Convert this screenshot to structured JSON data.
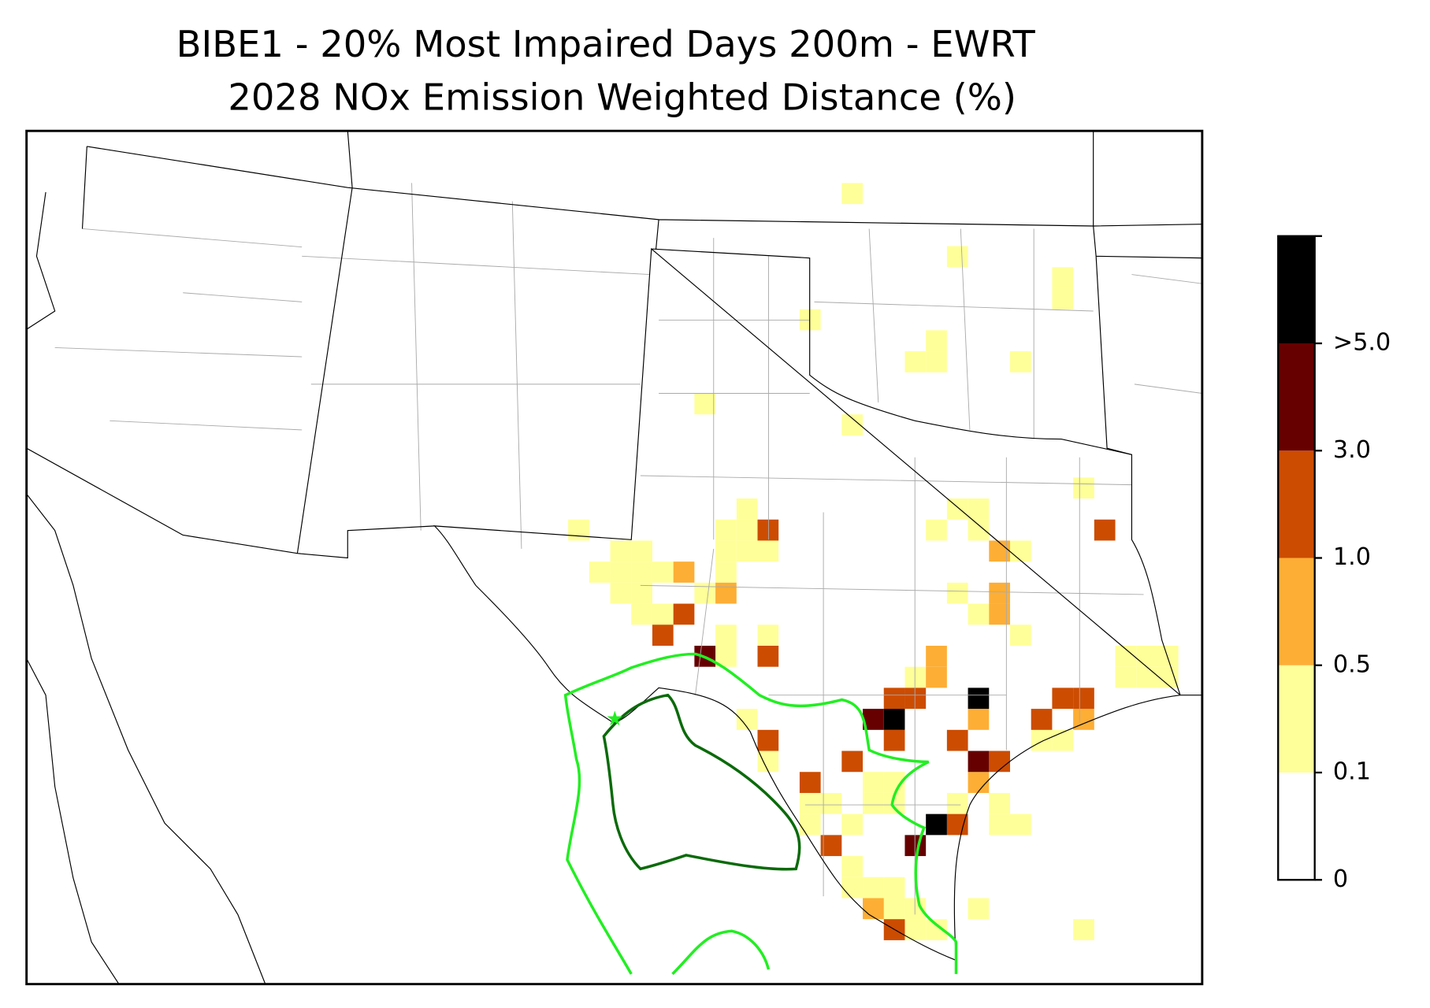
{
  "title_lines": [
    "BIBE1 - 20% Most Impaired Days 200m - EWRT",
    "2028 NOx Emission Weighted Distance (%)"
  ],
  "colorbar": {
    "colors": [
      "#ffffff",
      "#ffff99",
      "#fdae35",
      "#cc4c02",
      "#660000",
      "#000000"
    ],
    "ticks": [
      0,
      0.1,
      0.5,
      {
        "value": 1,
        "label": "1.0"
      },
      {
        "value": 3,
        "label": "3.0"
      },
      {
        "value": 5,
        "label": ">5.0"
      }
    ]
  },
  "cells": [
    [
      39,
      3,
      1
    ],
    [
      44,
      6,
      1
    ],
    [
      49,
      7,
      1
    ],
    [
      49,
      8,
      1
    ],
    [
      37,
      9,
      1
    ],
    [
      42,
      11,
      1
    ],
    [
      43,
      10,
      1
    ],
    [
      43,
      11,
      1
    ],
    [
      47,
      11,
      1
    ],
    [
      32,
      13,
      1
    ],
    [
      39,
      14,
      1
    ],
    [
      50,
      17,
      1
    ],
    [
      26,
      19,
      1
    ],
    [
      34,
      18,
      1
    ],
    [
      33,
      19,
      1
    ],
    [
      34,
      19,
      1
    ],
    [
      28,
      20,
      1
    ],
    [
      29,
      20,
      1
    ],
    [
      33,
      20,
      1
    ],
    [
      34,
      20,
      1
    ],
    [
      27,
      21,
      1
    ],
    [
      28,
      21,
      1
    ],
    [
      29,
      21,
      1
    ],
    [
      30,
      21,
      1
    ],
    [
      33,
      21,
      1
    ],
    [
      28,
      22,
      1
    ],
    [
      29,
      22,
      1
    ],
    [
      32,
      22,
      1
    ],
    [
      29,
      23,
      1
    ],
    [
      30,
      23,
      1
    ],
    [
      44,
      18,
      1
    ],
    [
      45,
      18,
      1
    ],
    [
      43,
      19,
      1
    ],
    [
      45,
      19,
      1
    ],
    [
      35,
      20,
      1
    ],
    [
      47,
      20,
      1
    ],
    [
      44,
      22,
      1
    ],
    [
      45,
      23,
      1
    ],
    [
      47,
      24,
      1
    ],
    [
      33,
      24,
      1
    ],
    [
      33,
      25,
      1
    ],
    [
      35,
      24,
      1
    ],
    [
      52,
      25,
      1
    ],
    [
      53,
      25,
      1
    ],
    [
      54,
      25,
      1
    ],
    [
      52,
      26,
      1
    ],
    [
      53,
      26,
      1
    ],
    [
      54,
      26,
      1
    ],
    [
      42,
      26,
      1
    ],
    [
      34,
      28,
      1
    ],
    [
      48,
      29,
      1
    ],
    [
      49,
      29,
      1
    ],
    [
      35,
      30,
      1
    ],
    [
      40,
      31,
      1
    ],
    [
      41,
      31,
      1
    ],
    [
      37,
      32,
      1
    ],
    [
      38,
      32,
      1
    ],
    [
      37,
      33,
      1
    ],
    [
      39,
      33,
      1
    ],
    [
      41,
      32,
      1
    ],
    [
      40,
      32,
      1
    ],
    [
      46,
      32,
      1
    ],
    [
      46,
      33,
      1
    ],
    [
      47,
      33,
      1
    ],
    [
      44,
      32,
      1
    ],
    [
      39,
      35,
      1
    ],
    [
      39,
      36,
      1
    ],
    [
      40,
      36,
      1
    ],
    [
      41,
      36,
      1
    ],
    [
      41,
      37,
      1
    ],
    [
      42,
      37,
      1
    ],
    [
      45,
      37,
      1
    ],
    [
      50,
      38,
      1
    ],
    [
      42,
      38,
      1
    ],
    [
      43,
      38,
      1
    ],
    [
      31,
      21,
      2
    ],
    [
      33,
      22,
      2
    ],
    [
      46,
      20,
      2
    ],
    [
      46,
      22,
      2
    ],
    [
      46,
      23,
      2
    ],
    [
      43,
      25,
      2
    ],
    [
      43,
      26,
      2
    ],
    [
      45,
      28,
      2
    ],
    [
      50,
      28,
      2
    ],
    [
      45,
      31,
      2
    ],
    [
      40,
      37,
      2
    ],
    [
      35,
      19,
      3
    ],
    [
      51,
      19,
      3
    ],
    [
      31,
      23,
      3
    ],
    [
      30,
      24,
      3
    ],
    [
      35,
      25,
      3
    ],
    [
      41,
      27,
      3
    ],
    [
      42,
      27,
      3
    ],
    [
      49,
      27,
      3
    ],
    [
      50,
      27,
      3
    ],
    [
      48,
      28,
      3
    ],
    [
      35,
      29,
      3
    ],
    [
      41,
      29,
      3
    ],
    [
      44,
      29,
      3
    ],
    [
      39,
      30,
      3
    ],
    [
      46,
      30,
      3
    ],
    [
      37,
      31,
      3
    ],
    [
      44,
      33,
      3
    ],
    [
      38,
      34,
      3
    ],
    [
      41,
      38,
      3
    ],
    [
      32,
      25,
      4
    ],
    [
      40,
      28,
      4
    ],
    [
      45,
      30,
      4
    ],
    [
      42,
      34,
      4
    ],
    [
      45,
      27,
      5
    ],
    [
      41,
      28,
      5
    ],
    [
      43,
      33,
      5
    ]
  ]
}
